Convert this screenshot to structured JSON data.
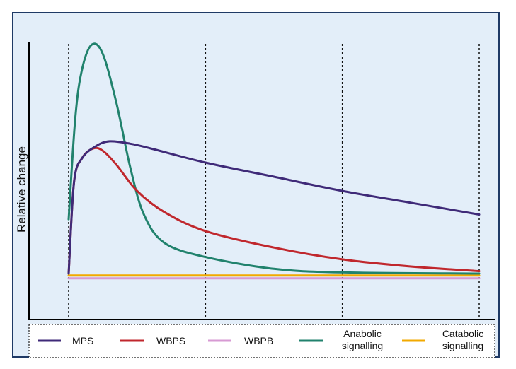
{
  "chart_data": {
    "type": "line",
    "title": "",
    "ylabel": "Relative change",
    "xlabel": "",
    "x": [
      0,
      1,
      2,
      3
    ],
    "xlim": [
      0,
      3
    ],
    "ylim": [
      0,
      1
    ],
    "grid": "vertical dotted lines at each x tick",
    "legend_position": "bottom",
    "series": [
      {
        "name": "MPS",
        "color": "#3f2a78",
        "points": [
          [
            0,
            0.03
          ],
          [
            0.04,
            0.42
          ],
          [
            0.1,
            0.52
          ],
          [
            0.2,
            0.57
          ],
          [
            0.3,
            0.59
          ],
          [
            0.45,
            0.58
          ],
          [
            0.6,
            0.56
          ],
          [
            1.0,
            0.5
          ],
          [
            1.5,
            0.44
          ],
          [
            2.0,
            0.38
          ],
          [
            2.5,
            0.33
          ],
          [
            3.0,
            0.28
          ]
        ]
      },
      {
        "name": "WBPS",
        "color": "#c0272d",
        "points": [
          [
            0,
            0.03
          ],
          [
            0.04,
            0.42
          ],
          [
            0.1,
            0.52
          ],
          [
            0.18,
            0.56
          ],
          [
            0.25,
            0.55
          ],
          [
            0.35,
            0.49
          ],
          [
            0.5,
            0.38
          ],
          [
            0.7,
            0.29
          ],
          [
            1.0,
            0.21
          ],
          [
            1.5,
            0.14
          ],
          [
            2.0,
            0.09
          ],
          [
            2.5,
            0.06
          ],
          [
            3.0,
            0.04
          ]
        ]
      },
      {
        "name": "WBPB",
        "color": "#d79ad3",
        "points": [
          [
            0,
            0.01
          ],
          [
            1,
            0.01
          ],
          [
            2,
            0.01
          ],
          [
            3,
            0.01
          ]
        ]
      },
      {
        "name": "Anabolic signalling",
        "color": "#21826d",
        "points": [
          [
            0,
            0.26
          ],
          [
            0.05,
            0.7
          ],
          [
            0.1,
            0.9
          ],
          [
            0.17,
            1.0
          ],
          [
            0.25,
            0.96
          ],
          [
            0.35,
            0.75
          ],
          [
            0.45,
            0.48
          ],
          [
            0.55,
            0.28
          ],
          [
            0.7,
            0.16
          ],
          [
            1.0,
            0.1
          ],
          [
            1.5,
            0.05
          ],
          [
            2.0,
            0.035
          ],
          [
            3.0,
            0.03
          ]
        ]
      },
      {
        "name": "Catabolic signalling",
        "color": "#f2a900",
        "points": [
          [
            0,
            0.022
          ],
          [
            1,
            0.022
          ],
          [
            2,
            0.022
          ],
          [
            3,
            0.022
          ]
        ]
      }
    ]
  }
}
